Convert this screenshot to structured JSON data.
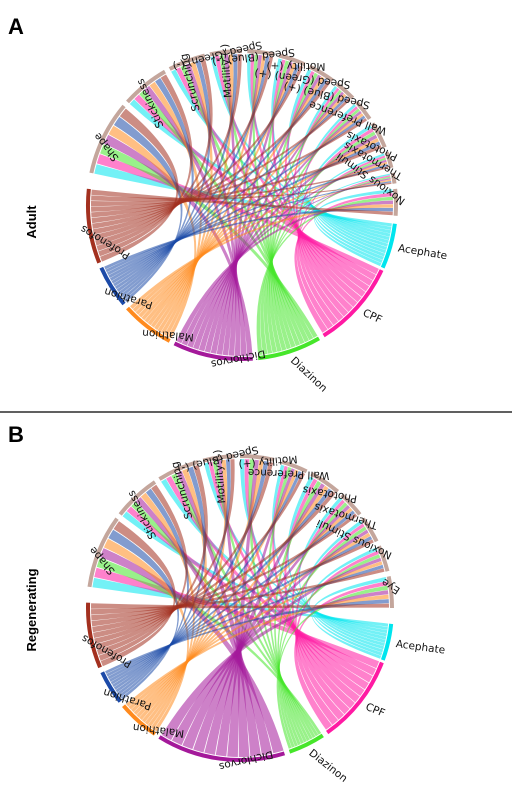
{
  "panels": [
    {
      "letter": "A",
      "side_label": "Adult",
      "nodes": [
        {
          "label": "Acephate",
          "color": "#00e5ee",
          "group": "chemical"
        },
        {
          "label": "CPF",
          "color": "#ff1aa3",
          "group": "chemical"
        },
        {
          "label": "Diazinon",
          "color": "#46e62a",
          "group": "chemical"
        },
        {
          "label": "Dichlorvos",
          "color": "#a4199a",
          "group": "chemical"
        },
        {
          "label": "Malathion",
          "color": "#ff8a1e",
          "group": "chemical"
        },
        {
          "label": "Parathion",
          "color": "#1c4aa8",
          "group": "chemical"
        },
        {
          "label": "Profenofos",
          "color": "#a3301f",
          "group": "chemical"
        },
        {
          "label": "Shape",
          "color": "#c4a69c",
          "group": "endpoint"
        },
        {
          "label": "Stickiness",
          "color": "#c4a69c",
          "group": "endpoint"
        },
        {
          "label": "Scrunching",
          "color": "#c4a69c",
          "group": "endpoint"
        },
        {
          "label": "Motility (-)",
          "color": "#c4a69c",
          "group": "endpoint"
        },
        {
          "label": "Speed (Green) (-)",
          "color": "#c4a69c",
          "group": "endpoint"
        },
        {
          "label": "Speed (Blue) (-)",
          "color": "#c4a69c",
          "group": "endpoint"
        },
        {
          "label": "Motility (+)",
          "color": "#c4a69c",
          "group": "endpoint"
        },
        {
          "label": "Speed (Green) (+)",
          "color": "#c4a69c",
          "group": "endpoint"
        },
        {
          "label": "Speed (Blue) (+)",
          "color": "#c4a69c",
          "group": "endpoint"
        },
        {
          "label": "Wall Preference",
          "color": "#c4a69c",
          "group": "endpoint"
        },
        {
          "label": "Phototaxis",
          "color": "#c4a69c",
          "group": "endpoint"
        },
        {
          "label": "Thermotaxis",
          "color": "#c4a69c",
          "group": "endpoint"
        },
        {
          "label": "Noxious Stimuli",
          "color": "#c4a69c",
          "group": "endpoint"
        }
      ]
    },
    {
      "letter": "B",
      "side_label": "Regenerating",
      "nodes": [
        {
          "label": "Acephate",
          "color": "#00e5ee",
          "group": "chemical"
        },
        {
          "label": "CPF",
          "color": "#ff1aa3",
          "group": "chemical"
        },
        {
          "label": "Diazinon",
          "color": "#46e62a",
          "group": "chemical"
        },
        {
          "label": "Dichlorvos",
          "color": "#a4199a",
          "group": "chemical"
        },
        {
          "label": "Malathion",
          "color": "#ff8a1e",
          "group": "chemical"
        },
        {
          "label": "Parathion",
          "color": "#1c4aa8",
          "group": "chemical"
        },
        {
          "label": "Profenofos",
          "color": "#a3301f",
          "group": "chemical"
        },
        {
          "label": "Shape",
          "color": "#c4a69c",
          "group": "endpoint"
        },
        {
          "label": "Stickiness",
          "color": "#c4a69c",
          "group": "endpoint"
        },
        {
          "label": "Scrunching",
          "color": "#c4a69c",
          "group": "endpoint"
        },
        {
          "label": "Motility (-)",
          "color": "#c4a69c",
          "group": "endpoint"
        },
        {
          "label": "Speed (Blue) (-)",
          "color": "#c4a69c",
          "group": "endpoint"
        },
        {
          "label": "Motility (+)",
          "color": "#c4a69c",
          "group": "endpoint"
        },
        {
          "label": "Wall Preference",
          "color": "#c4a69c",
          "group": "endpoint"
        },
        {
          "label": "Phototaxis",
          "color": "#c4a69c",
          "group": "endpoint"
        },
        {
          "label": "Thermotaxis",
          "color": "#c4a69c",
          "group": "endpoint"
        },
        {
          "label": "Noxious Stimuli",
          "color": "#c4a69c",
          "group": "endpoint"
        },
        {
          "label": "Eye",
          "color": "#c4a69c",
          "group": "endpoint"
        }
      ]
    }
  ]
}
